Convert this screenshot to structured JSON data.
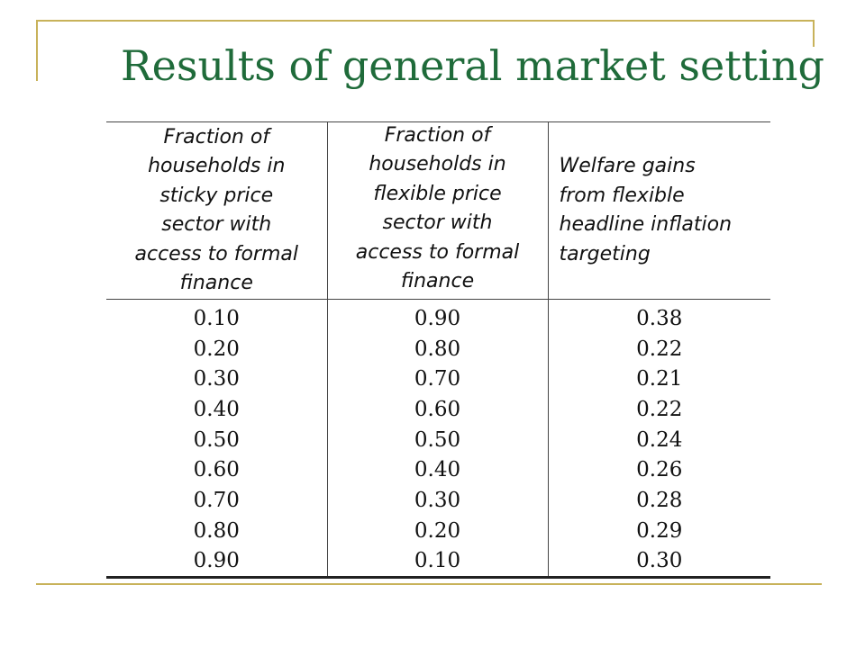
{
  "slide": {
    "title": "Results of general market setting"
  },
  "table": {
    "headers": [
      "Fraction of\nhouseholds in\nsticky price\nsector with\naccess to formal\nfinance",
      "Fraction of\nhouseholds in\nflexible price\nsector with\naccess to formal\nfinance",
      "Welfare gains\nfrom flexible\nheadline inflation\ntargeting"
    ],
    "rows": [
      [
        "0.10",
        "0.90",
        "0.38"
      ],
      [
        "0.20",
        "0.80",
        "0.22"
      ],
      [
        "0.30",
        "0.70",
        "0.21"
      ],
      [
        "0.40",
        "0.60",
        "0.22"
      ],
      [
        "0.50",
        "0.50",
        "0.24"
      ],
      [
        "0.60",
        "0.40",
        "0.26"
      ],
      [
        "0.70",
        "0.30",
        "0.28"
      ],
      [
        "0.80",
        "0.20",
        "0.29"
      ],
      [
        "0.90",
        "0.10",
        "0.30"
      ]
    ]
  },
  "colors": {
    "title": "#1f6b3a",
    "frame": "#c8b25a"
  }
}
